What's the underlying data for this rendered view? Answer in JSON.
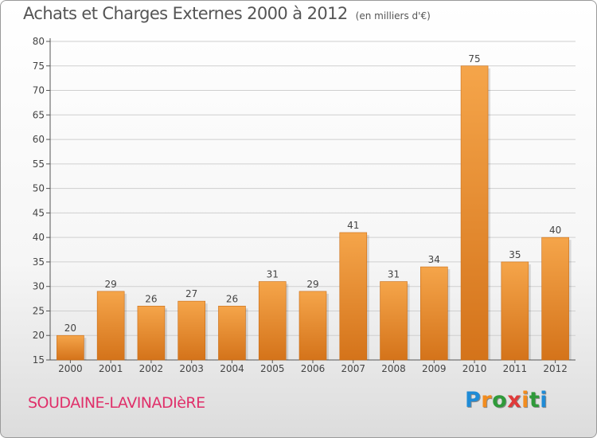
{
  "title": "Achats et Charges Externes 2000 à 2012",
  "unit": "(en milliers d'€)",
  "commune": "SOUDAINE-LAVINADIèRE",
  "logo": {
    "text": "Proxiti",
    "letter_colors": [
      "#1f8bd6",
      "#f28c1e",
      "#2f9a3a",
      "#e03a3a",
      "#f28c1e",
      "#2f9a3a",
      "#1f8bd6"
    ]
  },
  "colors": {
    "bar_light": "#f5a54a",
    "bar_dark": "#d4731a",
    "axis": "#555555",
    "grid": "#cfcfcf"
  },
  "chart_data": {
    "type": "bar",
    "title": "Achats et Charges Externes 2000 à 2012",
    "categories": [
      "2000",
      "2001",
      "2002",
      "2003",
      "2004",
      "2005",
      "2006",
      "2007",
      "2008",
      "2009",
      "2010",
      "2011",
      "2012"
    ],
    "values": [
      20,
      29,
      26,
      27,
      26,
      31,
      29,
      41,
      31,
      34,
      75,
      35,
      40
    ],
    "ylim": [
      15,
      80
    ],
    "yticks": [
      15,
      20,
      25,
      30,
      35,
      40,
      45,
      50,
      55,
      60,
      65,
      70,
      75,
      80
    ],
    "grid": true,
    "data_labels": true
  }
}
